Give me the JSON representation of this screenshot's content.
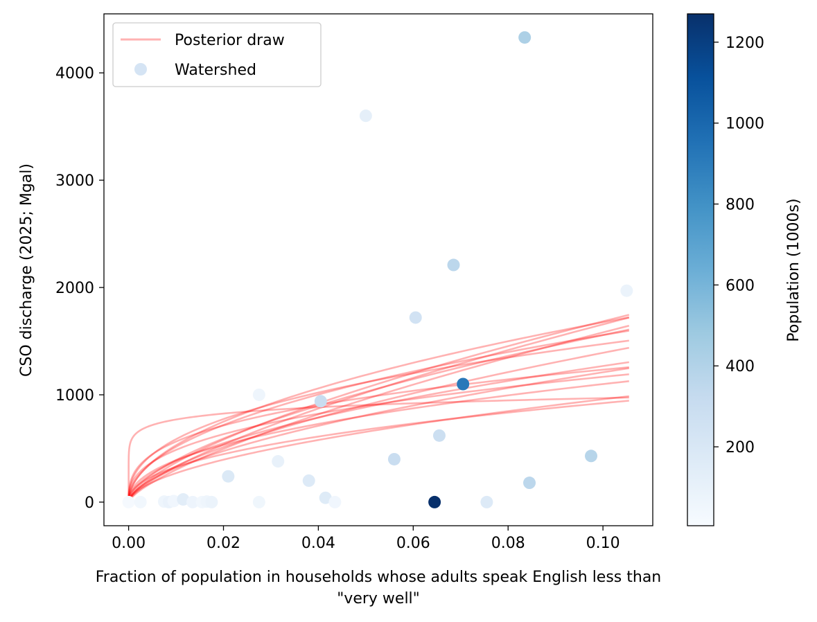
{
  "chart_data": {
    "type": "scatter",
    "title": "",
    "xlabel_lines": [
      "Fraction of population in households whose adults speak English less than",
      "\"very well\""
    ],
    "ylabel": "CSO discharge (2025; Mgal)",
    "xlim": [
      -0.0052,
      0.1105
    ],
    "ylim": [
      -220,
      4550
    ],
    "xticks": [
      0.0,
      0.02,
      0.04,
      0.06,
      0.08,
      0.1
    ],
    "xtick_labels": [
      "0.00",
      "0.02",
      "0.04",
      "0.06",
      "0.08",
      "0.10"
    ],
    "yticks": [
      0,
      1000,
      2000,
      3000,
      4000
    ],
    "ytick_labels": [
      "0",
      "1000",
      "2000",
      "3000",
      "4000"
    ],
    "grid": false,
    "legend": {
      "position": "top-left",
      "entries": [
        {
          "label": "Posterior draw",
          "kind": "line",
          "color": "#ff0000",
          "alpha": 0.3
        },
        {
          "label": "Watershed",
          "kind": "marker",
          "color": "#d5e4f4"
        }
      ]
    },
    "colorbar": {
      "label": "Population (1000s)",
      "cmap": "Blues",
      "min": 5,
      "max": 1270,
      "ticks": [
        200,
        400,
        600,
        800,
        1000,
        1200
      ],
      "tick_labels": [
        "200",
        "400",
        "600",
        "800",
        "1000",
        "1200"
      ]
    },
    "scatter": {
      "name": "Watershed",
      "points": [
        {
          "x": 0.0,
          "y": 0,
          "pop": 20
        },
        {
          "x": 0.0025,
          "y": 0,
          "pop": 40
        },
        {
          "x": 0.0075,
          "y": 5,
          "pop": 60
        },
        {
          "x": 0.0085,
          "y": 0,
          "pop": 90
        },
        {
          "x": 0.0095,
          "y": 10,
          "pop": 50
        },
        {
          "x": 0.0115,
          "y": 25,
          "pop": 140
        },
        {
          "x": 0.0135,
          "y": 0,
          "pop": 70
        },
        {
          "x": 0.0155,
          "y": 0,
          "pop": 45
        },
        {
          "x": 0.0165,
          "y": 5,
          "pop": 60
        },
        {
          "x": 0.0175,
          "y": 0,
          "pop": 80
        },
        {
          "x": 0.021,
          "y": 240,
          "pop": 180
        },
        {
          "x": 0.0275,
          "y": 1000,
          "pop": 60
        },
        {
          "x": 0.0275,
          "y": 0,
          "pop": 55
        },
        {
          "x": 0.0315,
          "y": 380,
          "pop": 100
        },
        {
          "x": 0.038,
          "y": 200,
          "pop": 170
        },
        {
          "x": 0.0405,
          "y": 940,
          "pop": 300
        },
        {
          "x": 0.0415,
          "y": 40,
          "pop": 160
        },
        {
          "x": 0.0435,
          "y": 0,
          "pop": 50
        },
        {
          "x": 0.05,
          "y": 3600,
          "pop": 120
        },
        {
          "x": 0.056,
          "y": 400,
          "pop": 300
        },
        {
          "x": 0.0605,
          "y": 1720,
          "pop": 250
        },
        {
          "x": 0.0645,
          "y": 0,
          "pop": 1270
        },
        {
          "x": 0.0655,
          "y": 620,
          "pop": 280
        },
        {
          "x": 0.0685,
          "y": 2210,
          "pop": 360
        },
        {
          "x": 0.0705,
          "y": 1100,
          "pop": 920
        },
        {
          "x": 0.0755,
          "y": 0,
          "pop": 170
        },
        {
          "x": 0.0835,
          "y": 4330,
          "pop": 420
        },
        {
          "x": 0.0845,
          "y": 180,
          "pop": 360
        },
        {
          "x": 0.0975,
          "y": 430,
          "pop": 380
        },
        {
          "x": 0.105,
          "y": 1970,
          "pop": 80
        }
      ]
    },
    "posterior_draws": {
      "name": "Posterior draw",
      "model": "y = a * x^b",
      "x_range": [
        0.0,
        0.1055
      ],
      "draws": [
        {
          "a": 1220,
          "b": 0.1
        },
        {
          "a": 5300,
          "b": 0.5
        },
        {
          "a": 8300,
          "b": 0.7
        },
        {
          "a": 3700,
          "b": 0.4
        },
        {
          "a": 4700,
          "b": 0.48
        },
        {
          "a": 8300,
          "b": 0.72
        },
        {
          "a": 3100,
          "b": 0.45
        },
        {
          "a": 2700,
          "b": 0.34
        },
        {
          "a": 6200,
          "b": 0.6
        },
        {
          "a": 3400,
          "b": 0.55
        },
        {
          "a": 4600,
          "b": 0.58
        },
        {
          "a": 7700,
          "b": 0.66
        },
        {
          "a": 2800,
          "b": 0.38
        },
        {
          "a": 5800,
          "b": 0.62
        },
        {
          "a": 2600,
          "b": 0.45
        },
        {
          "a": 4200,
          "b": 0.52
        }
      ]
    }
  }
}
